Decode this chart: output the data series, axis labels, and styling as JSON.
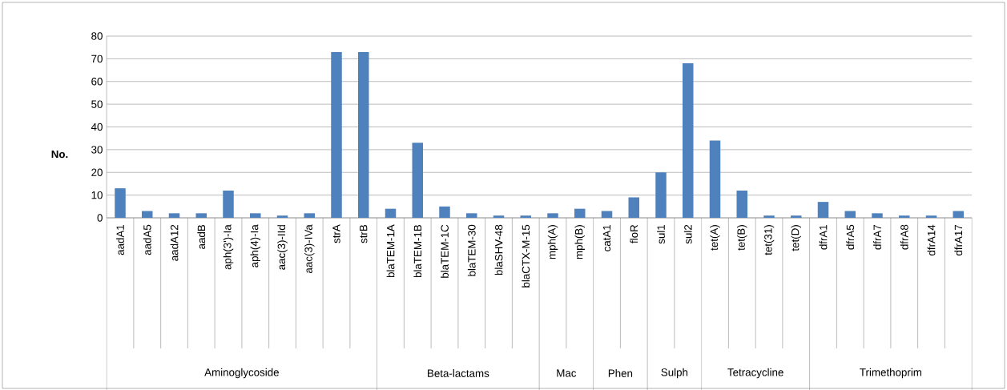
{
  "chart_data": {
    "type": "bar",
    "ylabel": "No.",
    "categories": [
      "aadA1",
      "aadA5",
      "aadA12",
      "aadB",
      "aph(3')-Ia",
      "aph(4)-Ia",
      "aac(3)-IId",
      "aac(3)-IVa",
      "strA",
      "strB",
      "blaTEM-1A",
      "blaTEM-1B",
      "blaTEM-1C",
      "blaTEM-30",
      "blaSHV-48",
      "blaCTX-M-15",
      "mph(A)",
      "mph(B)",
      "catA1",
      "floR",
      "sul1",
      "sul2",
      "tet(A)",
      "tet(B)",
      "tet(31)",
      "tet(D)",
      "dfrA1",
      "dfrA5",
      "dfrA7",
      "dfrA8",
      "dfrA14",
      "dfrA17"
    ],
    "values": [
      13,
      3,
      2,
      2,
      12,
      2,
      1,
      2,
      73,
      73,
      4,
      33,
      5,
      2,
      1,
      1,
      2,
      4,
      3,
      9,
      20,
      68,
      34,
      12,
      1,
      1,
      7,
      3,
      2,
      1,
      1,
      3
    ],
    "color": "#4f81bd",
    "ylim": [
      0,
      80
    ],
    "yticks": [
      0,
      10,
      20,
      30,
      40,
      50,
      60,
      70,
      80
    ],
    "grid": "y",
    "annotations": [
      "Aminoglycoside",
      "Beta-lactams",
      "Mac",
      "Phen",
      "Sulph",
      "Tetracycline",
      "Trimethoprim"
    ]
  }
}
